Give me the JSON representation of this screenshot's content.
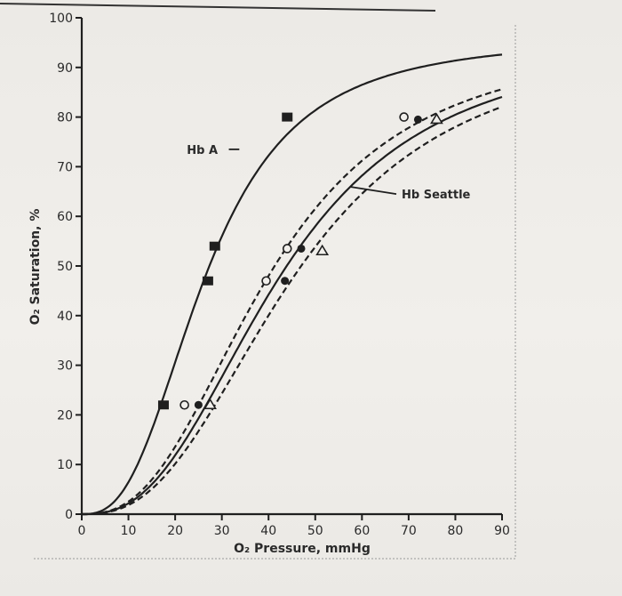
{
  "chart_data": {
    "type": "line",
    "title": "",
    "xlabel": "O₂ Pressure, mmHg",
    "ylabel": "O₂ Saturation, %",
    "xlim": [
      0,
      90
    ],
    "ylim": [
      0,
      100
    ],
    "xticks": [
      0,
      10,
      20,
      30,
      40,
      50,
      60,
      70,
      80,
      90
    ],
    "yticks": [
      0,
      10,
      20,
      30,
      40,
      50,
      60,
      70,
      80,
      90,
      100
    ],
    "ytick_labels": [
      "0",
      "10",
      "20",
      "30",
      "40",
      "50",
      "60",
      "70",
      "80",
      "90",
      "100"
    ],
    "grid": false,
    "legend": "none",
    "series": [
      {
        "name": "Hb A",
        "style": "solid",
        "p50": 26.5,
        "n": 2.7,
        "ymax": 96,
        "markers": {
          "shape": "filled-square",
          "points": [
            [
              17.5,
              22
            ],
            [
              27,
              47
            ],
            [
              28.5,
              54
            ],
            [
              44,
              80
            ]
          ]
        }
      },
      {
        "name": "",
        "style": "dashed",
        "p50": 40,
        "n": 2.6,
        "ymax": 96,
        "markers": {
          "shape": "open-circle",
          "points": [
            [
              22,
              22
            ],
            [
              39.5,
              47
            ],
            [
              44,
              53.5
            ],
            [
              69,
              80
            ]
          ]
        }
      },
      {
        "name": "Hb Seattle",
        "style": "solid",
        "p50": 42.5,
        "n": 2.6,
        "ymax": 96,
        "markers": {
          "shape": "filled-circle",
          "points": [
            [
              25,
              22
            ],
            [
              43.5,
              47
            ],
            [
              47,
              53.5
            ],
            [
              72,
              79.5
            ]
          ]
        }
      },
      {
        "name": "",
        "style": "dashed",
        "p50": 45.5,
        "n": 2.6,
        "ymax": 96,
        "markers": {
          "shape": "open-triangle",
          "points": [
            [
              27.5,
              22
            ],
            [
              51.5,
              53
            ],
            [
              76,
              79.5
            ]
          ]
        }
      }
    ],
    "annotations": [
      {
        "text": "Hb A",
        "series": "Hb A"
      },
      {
        "text": "Hb Seattle",
        "series": "Hb Seattle"
      }
    ]
  }
}
